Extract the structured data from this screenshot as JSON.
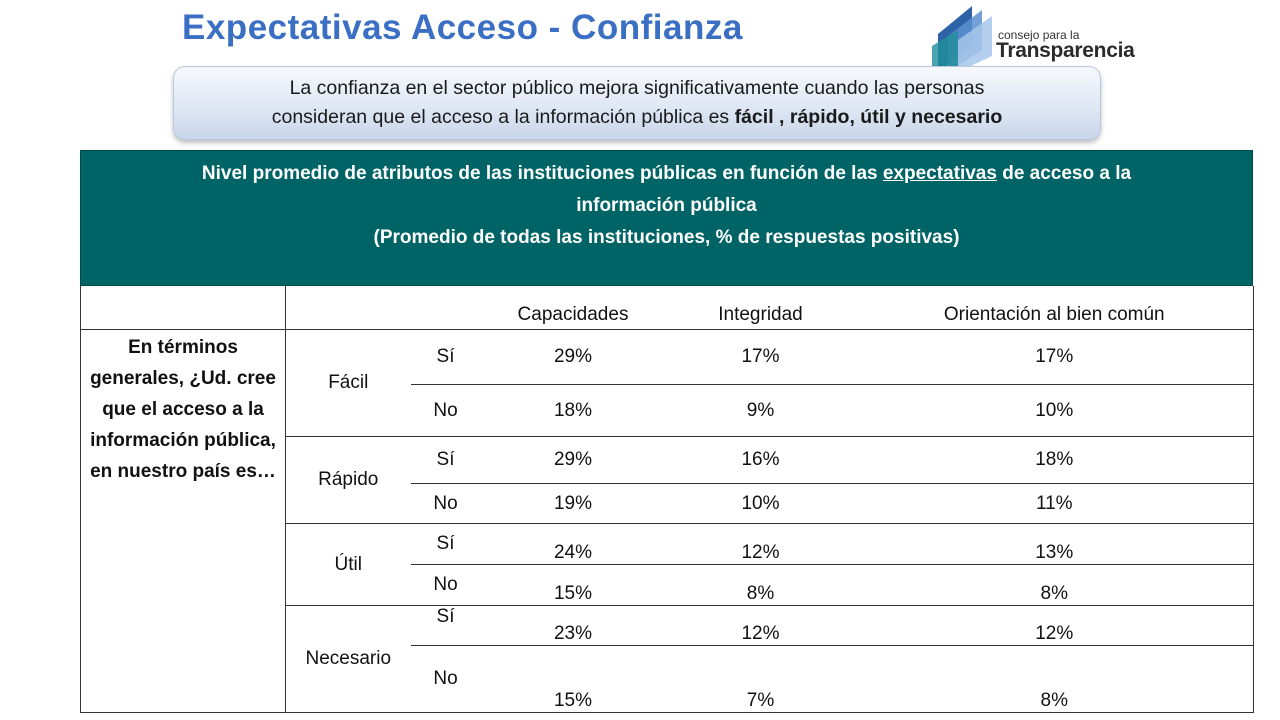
{
  "header": {
    "title": "Expectativas Acceso - Confianza",
    "logo": {
      "small": "consejo para la",
      "big": "Transparencia"
    }
  },
  "callout": {
    "line1": "La confianza en el sector público mejora significativamente cuando las personas",
    "line2_prefix": "consideran que el acceso a la información pública es ",
    "line2_bold": "fácil , rápido, útil y necesario"
  },
  "table": {
    "heading_pre": "Nivel promedio de atributos de las instituciones públicas en función de las ",
    "heading_underlined": "expectativas",
    "heading_post": " de acceso a la",
    "heading_line2": "información pública",
    "heading_line3": "(Promedio de todas las instituciones, % de respuestas positivas)",
    "columns": [
      "Capacidades",
      "Integridad",
      "Orientación al bien común"
    ],
    "question": "En términos generales, ¿Ud. cree que el acceso a la información pública, en nuestro país es…",
    "groups": [
      {
        "label": "Fácil",
        "rows": [
          {
            "answer": "Sí",
            "values": [
              "29%",
              "17%",
              "17%"
            ]
          },
          {
            "answer": "No",
            "values": [
              "18%",
              "9%",
              "10%"
            ]
          }
        ]
      },
      {
        "label": "Rápido",
        "rows": [
          {
            "answer": "Sí",
            "values": [
              "29%",
              "16%",
              "18%"
            ]
          },
          {
            "answer": "No",
            "values": [
              "19%",
              "10%",
              "11%"
            ]
          }
        ]
      },
      {
        "label": "Útil",
        "rows": [
          {
            "answer": "Sí",
            "values": [
              "24%",
              "12%",
              "13%"
            ]
          },
          {
            "answer": "No",
            "values": [
              "15%",
              "8%",
              "8%"
            ]
          }
        ]
      },
      {
        "label": "Necesario",
        "rows": [
          {
            "answer": "Sí",
            "values": [
              "23%",
              "12%",
              "12%"
            ]
          },
          {
            "answer": "No",
            "values": [
              "15%",
              "7%",
              "8%"
            ]
          }
        ]
      }
    ]
  },
  "colors": {
    "title": "#3b6fc4",
    "table_header": "#006466"
  }
}
